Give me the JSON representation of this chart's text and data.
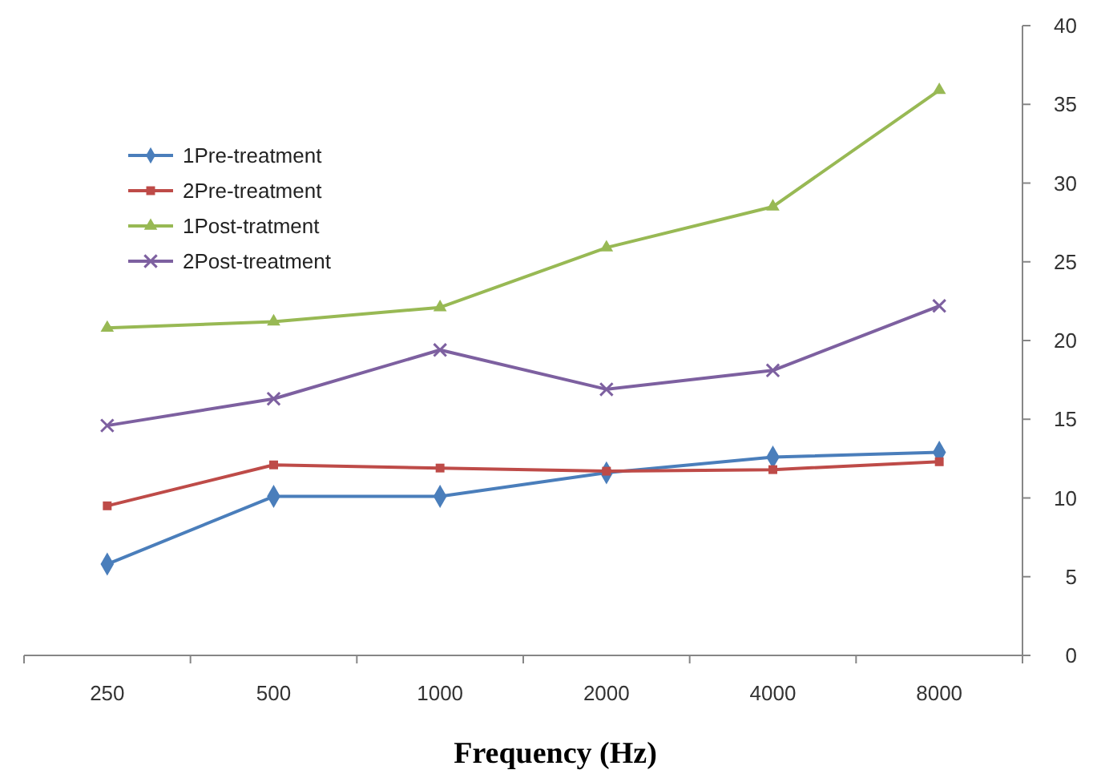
{
  "chart_data": {
    "type": "line",
    "xlabel": "Frequency (Hz)",
    "categories": [
      "250",
      "500",
      "1000",
      "2000",
      "4000",
      "8000"
    ],
    "series": [
      {
        "name": "1Pre-treatment",
        "color": "#4a7ebb",
        "marker": "diamond",
        "values": [
          5.8,
          10.1,
          10.1,
          11.6,
          12.6,
          12.9
        ]
      },
      {
        "name": "2Pre-treatment",
        "color": "#be4b48",
        "marker": "square",
        "values": [
          9.5,
          12.1,
          11.9,
          11.7,
          11.8,
          12.3
        ]
      },
      {
        "name": "1Post-tratment",
        "color": "#98b954",
        "marker": "triangle",
        "values": [
          20.8,
          21.2,
          22.1,
          25.9,
          28.5,
          35.9
        ]
      },
      {
        "name": "2Post-treatment",
        "color": "#7d60a0",
        "marker": "cross",
        "values": [
          14.6,
          16.3,
          19.4,
          16.9,
          18.1,
          22.2
        ]
      }
    ],
    "ylim": [
      0,
      40
    ],
    "yticks": [
      0,
      5,
      10,
      15,
      20,
      25,
      30,
      35,
      40
    ],
    "grid": false,
    "legend": "top left",
    "line_style": "solid"
  }
}
